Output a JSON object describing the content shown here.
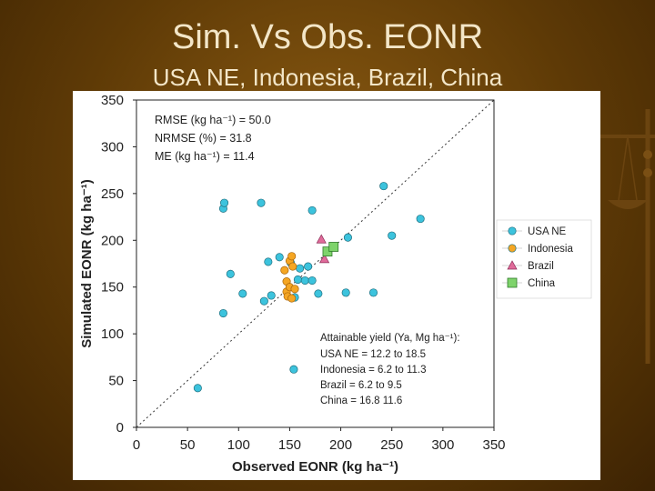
{
  "slide": {
    "title": "Sim. Vs Obs. EONR",
    "subtitle": "USA NE, Indonesia, Brazil, China"
  },
  "colors": {
    "usa_ne": "#3cc3dd",
    "indonesia": "#f5a623",
    "brazil": "#e06b9a",
    "china": "#7ed36b"
  },
  "chart_data": {
    "type": "scatter",
    "xlabel": "Observed EONR (kg ha⁻¹)",
    "ylabel": "Simulated EONR (kg ha⁻¹)",
    "xlim": [
      0,
      350
    ],
    "ylim": [
      0,
      350
    ],
    "xticks": [
      0,
      50,
      100,
      150,
      200,
      250,
      300,
      350
    ],
    "yticks": [
      0,
      50,
      100,
      150,
      200,
      250,
      300,
      350
    ],
    "one_to_one_line": true,
    "legend_position": "right",
    "stats": [
      "RMSE (kg ha⁻¹) = 50.0",
      "NRMSE (%) = 31.8",
      "ME (kg ha⁻¹) = 11.4"
    ],
    "yield_note": {
      "heading": "Attainable yield (Ya, Mg ha⁻¹):",
      "lines": [
        "USA NE = 12.2 to 18.5",
        "Indonesia = 6.2 to 11.3",
        "Brazil = 6.2 to 9.5",
        "China = 16.8 11.6"
      ]
    },
    "series": [
      {
        "name": "USA NE",
        "marker": "circle",
        "points": [
          [
            60,
            42
          ],
          [
            85,
            122
          ],
          [
            85,
            234
          ],
          [
            86,
            240
          ],
          [
            92,
            164
          ],
          [
            104,
            143
          ],
          [
            122,
            240
          ],
          [
            125,
            135
          ],
          [
            129,
            177
          ],
          [
            132,
            141
          ],
          [
            140,
            182
          ],
          [
            151,
            176
          ],
          [
            154,
            62
          ],
          [
            155,
            139
          ],
          [
            158,
            158
          ],
          [
            160,
            170
          ],
          [
            165,
            157
          ],
          [
            168,
            172
          ],
          [
            172,
            157
          ],
          [
            172,
            232
          ],
          [
            178,
            143
          ],
          [
            205,
            144
          ],
          [
            207,
            203
          ],
          [
            232,
            144
          ],
          [
            242,
            258
          ],
          [
            250,
            205
          ],
          [
            278,
            223
          ]
        ]
      },
      {
        "name": "Indonesia",
        "marker": "circle",
        "points": [
          [
            145,
            168
          ],
          [
            147,
            156
          ],
          [
            147,
            145
          ],
          [
            148,
            140
          ],
          [
            150,
            178
          ],
          [
            150,
            150
          ],
          [
            152,
            183
          ],
          [
            152,
            138
          ],
          [
            153,
            172
          ],
          [
            155,
            148
          ]
        ]
      },
      {
        "name": "Brazil",
        "marker": "triangle",
        "points": [
          [
            181,
            201
          ],
          [
            184,
            180
          ]
        ]
      },
      {
        "name": "China",
        "marker": "square",
        "points": [
          [
            187,
            188
          ],
          [
            193,
            193
          ]
        ]
      }
    ]
  }
}
